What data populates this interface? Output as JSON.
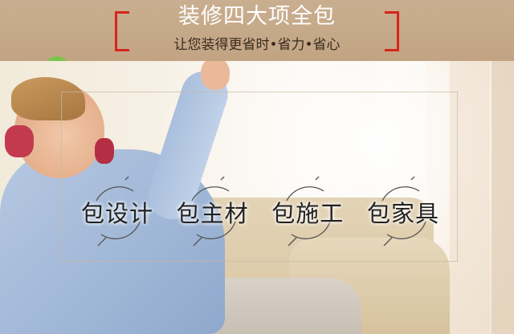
{
  "header": {
    "title": "装修四大项全包",
    "subtitle": "让您装得更省时•省力•省心"
  },
  "colors": {
    "header_bg": "#c4a685",
    "bracket": "#d8241c",
    "title": "#ffffff",
    "label": "#222222"
  },
  "features": [
    {
      "label": "包设计",
      "icon": "slashed-circle-icon"
    },
    {
      "label": "包主材",
      "icon": "slashed-circle-icon"
    },
    {
      "label": "包施工",
      "icon": "slashed-circle-icon"
    },
    {
      "label": "包家具",
      "icon": "slashed-circle-icon"
    }
  ]
}
